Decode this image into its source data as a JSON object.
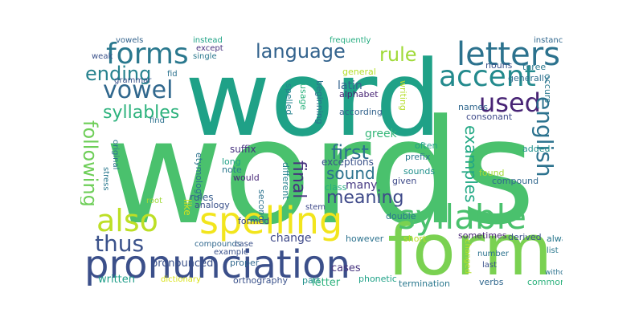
{
  "palette": {
    "purple": "#46327e",
    "blue": "#365c8d",
    "teal": "#277f8e",
    "green_teal": "#1fa187",
    "green": "#4ac16d",
    "lime": "#a0da39",
    "yellow": "#fde725"
  },
  "words": [
    {
      "text": "words",
      "color": "#4ac16d"
    },
    {
      "text": "word",
      "color": "#1fa187"
    },
    {
      "text": "form",
      "color": "#7ad151"
    },
    {
      "text": "pronunciation",
      "color": "#3b4f8a"
    },
    {
      "text": "spelling",
      "color": "#f2e51d"
    },
    {
      "text": "syllable",
      "color": "#4ac16d"
    },
    {
      "text": "also",
      "color": "#bddf26"
    },
    {
      "text": "forms",
      "color": "#2a788e"
    },
    {
      "text": "letters",
      "color": "#2c728e"
    },
    {
      "text": "accent",
      "color": "#238a8d"
    },
    {
      "text": "used",
      "color": "#482475"
    },
    {
      "text": "english",
      "color": "#2c728e"
    },
    {
      "text": "vowel",
      "color": "#31688e"
    },
    {
      "text": "thus",
      "color": "#3b528b"
    },
    {
      "text": "language",
      "color": "#33638d"
    },
    {
      "text": "ending",
      "color": "#26828e"
    },
    {
      "text": "rule",
      "color": "#a0da39"
    },
    {
      "text": "first",
      "color": "#2d708e"
    },
    {
      "text": "following",
      "color": "#6ece58"
    },
    {
      "text": "syllables",
      "color": "#2db27d"
    },
    {
      "text": "final",
      "color": "#46327e"
    },
    {
      "text": "meaning",
      "color": "#3e4989"
    },
    {
      "text": "sound",
      "color": "#2c728e"
    },
    {
      "text": "examples",
      "color": "#22a884"
    },
    {
      "text": "pronounced",
      "color": "#3b528b"
    },
    {
      "text": "latin",
      "color": "#33638d"
    },
    {
      "text": "written",
      "color": "#1f9e89"
    },
    {
      "text": "change",
      "color": "#3e4989"
    },
    {
      "text": "cases",
      "color": "#46337e"
    },
    {
      "text": "letter",
      "color": "#2db27d"
    },
    {
      "text": "many",
      "color": "#453882"
    },
    {
      "text": "greek",
      "color": "#35b779"
    },
    {
      "text": "etymology",
      "color": "#2c728e"
    },
    {
      "text": "rules",
      "color": "#365c8d"
    },
    {
      "text": "like",
      "color": "#d0e11c"
    },
    {
      "text": "suffix",
      "color": "#46327e"
    },
    {
      "text": "long",
      "color": "#1fa187"
    },
    {
      "text": "note",
      "color": "#2a788e"
    },
    {
      "text": "would",
      "color": "#482878"
    },
    {
      "text": "different",
      "color": "#26828e"
    },
    {
      "text": "second",
      "color": "#2c728e"
    },
    {
      "text": "exceptions",
      "color": "#3b528b"
    },
    {
      "text": "class",
      "color": "#27ad81"
    },
    {
      "text": "given",
      "color": "#3e4a89"
    },
    {
      "text": "compound",
      "color": "#31688e"
    },
    {
      "text": "found",
      "color": "#a5db36"
    },
    {
      "text": "sounds",
      "color": "#21918c"
    },
    {
      "text": "prefix",
      "color": "#2a788e"
    },
    {
      "text": "often",
      "color": "#1fa187"
    },
    {
      "text": "added",
      "color": "#21918c"
    },
    {
      "text": "consonant",
      "color": "#3e4989"
    },
    {
      "text": "names",
      "color": "#31688e"
    },
    {
      "text": "according",
      "color": "#33638d"
    },
    {
      "text": "beginning",
      "color": "#2c728e"
    },
    {
      "text": "alphabet",
      "color": "#482475"
    },
    {
      "text": "general",
      "color": "#b5de2b"
    },
    {
      "text": "usage",
      "color": "#2db27d"
    },
    {
      "text": "spelled",
      "color": "#26828e"
    },
    {
      "text": "writing",
      "color": "#b5de2b"
    },
    {
      "text": "generally",
      "color": "#2e6e8e"
    },
    {
      "text": "three",
      "color": "#2a788e"
    },
    {
      "text": "occurs",
      "color": "#2a788e"
    },
    {
      "text": "nouns",
      "color": "#3b528b"
    },
    {
      "text": "instances",
      "color": "#31688e"
    },
    {
      "text": "frequently",
      "color": "#27ad81"
    },
    {
      "text": "instead",
      "color": "#20a386"
    },
    {
      "text": "vowels",
      "color": "#33638d"
    },
    {
      "text": "except",
      "color": "#46327e"
    },
    {
      "text": "single",
      "color": "#2a788e"
    },
    {
      "text": "weak",
      "color": "#3b528b"
    },
    {
      "text": "fid",
      "color": "#2c728e"
    },
    {
      "text": "grammar",
      "color": "#3b528b"
    },
    {
      "text": "find",
      "color": "#2c728e"
    },
    {
      "text": "original",
      "color": "#2c728e"
    },
    {
      "text": "stress",
      "color": "#2a788e"
    },
    {
      "text": "root",
      "color": "#a0da39"
    },
    {
      "text": "analogy",
      "color": "#3b528b"
    },
    {
      "text": "formed",
      "color": "#3e4989"
    },
    {
      "text": "stem",
      "color": "#3e4989"
    },
    {
      "text": "compounds",
      "color": "#31688e"
    },
    {
      "text": "case",
      "color": "#3b528b"
    },
    {
      "text": "example",
      "color": "#3b528b"
    },
    {
      "text": "proper",
      "color": "#31688e"
    },
    {
      "text": "however",
      "color": "#2c728e"
    },
    {
      "text": "double",
      "color": "#2a788e"
    },
    {
      "text": "short",
      "color": "#bddf26"
    },
    {
      "text": "sometimes",
      "color": "#482475"
    },
    {
      "text": "derived",
      "color": "#3b528b"
    },
    {
      "text": "always",
      "color": "#2a788e"
    },
    {
      "text": "dictionary",
      "color": "#d8e219"
    },
    {
      "text": "orthography",
      "color": "#3b528b"
    },
    {
      "text": "part",
      "color": "#21918c"
    },
    {
      "text": "phonetic",
      "color": "#1fa187"
    },
    {
      "text": "termination",
      "color": "#2a788e"
    },
    {
      "text": "changed",
      "color": "#b5de2b"
    },
    {
      "text": "number",
      "color": "#2c728e"
    },
    {
      "text": "last",
      "color": "#3b528b"
    },
    {
      "text": "list",
      "color": "#2a788e"
    },
    {
      "text": "verbs",
      "color": "#31688e"
    },
    {
      "text": "common",
      "color": "#2db27d"
    },
    {
      "text": "without",
      "color": "#2c728e"
    }
  ]
}
